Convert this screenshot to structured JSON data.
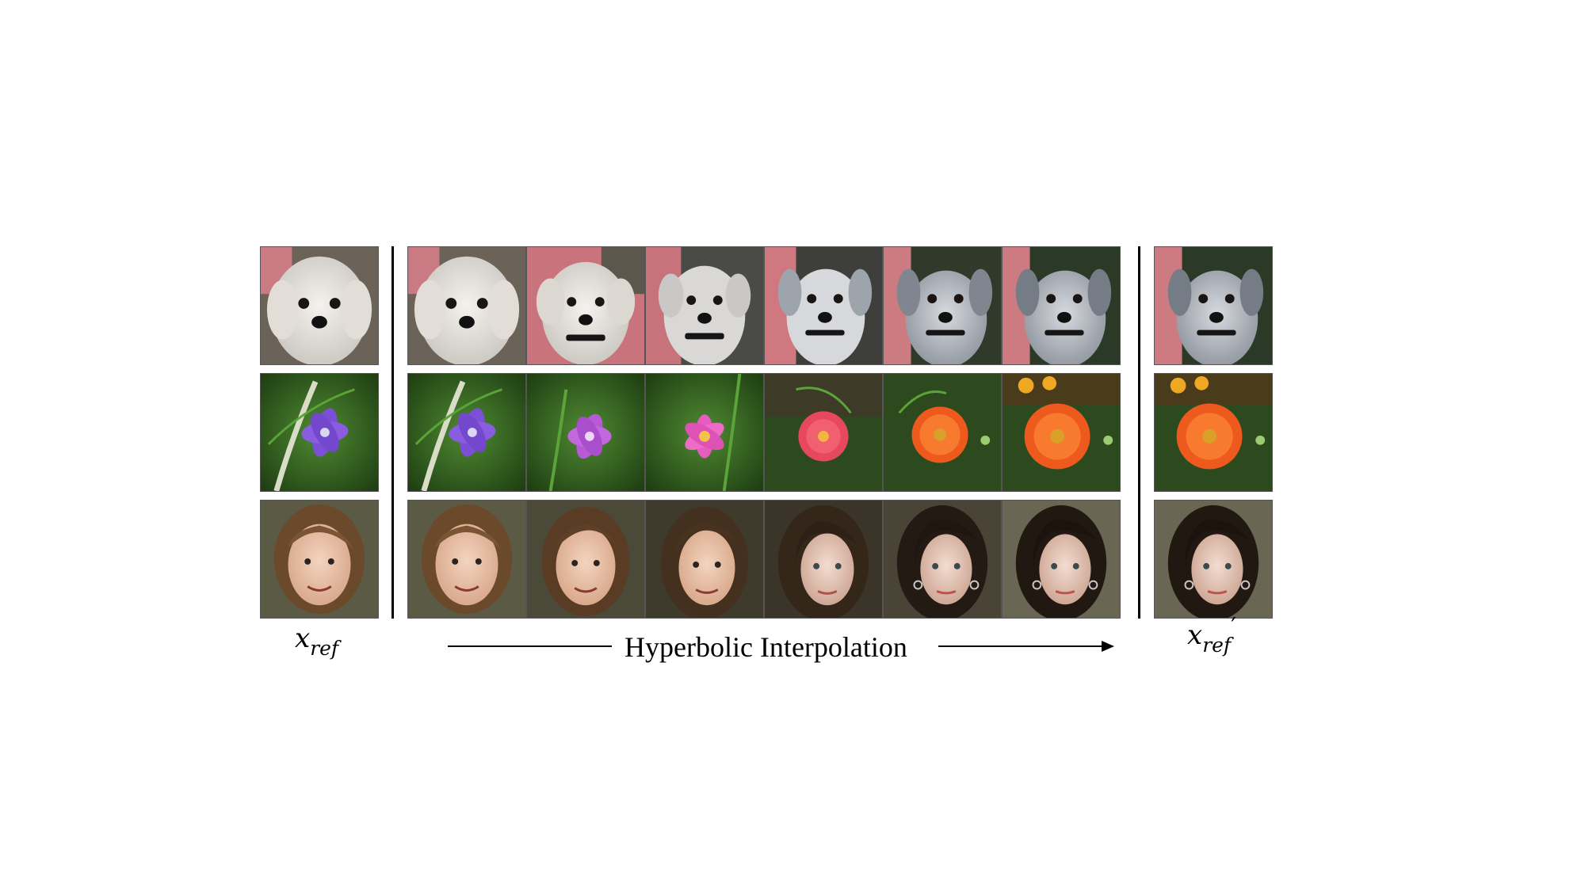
{
  "caption": {
    "left_symbol": {
      "base": "x",
      "sub": "ref"
    },
    "right_symbol": {
      "base": "x",
      "sub": "ref",
      "prime": "′"
    },
    "middle_label": "Hyperbolic Interpolation"
  },
  "rows": [
    {
      "subject": "dog",
      "tile_count": 8
    },
    {
      "subject": "flower",
      "tile_count": 8
    },
    {
      "subject": "face",
      "tile_count": 8
    }
  ]
}
